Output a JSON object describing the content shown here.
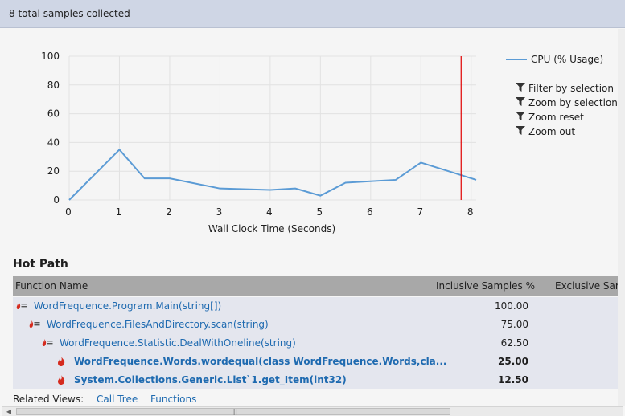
{
  "header": {
    "title": "8 total samples collected"
  },
  "chart_data": {
    "type": "line",
    "x": [
      0,
      1,
      1.5,
      2,
      3,
      4,
      4.5,
      5,
      5.5,
      6.5,
      7,
      8.1
    ],
    "series": [
      {
        "name": "CPU (% Usage)",
        "values": [
          0,
          35,
          15,
          15,
          8,
          7,
          8,
          3,
          12,
          14,
          26,
          14
        ],
        "color": "#5b9bd5"
      }
    ],
    "xlabel": "Wall Clock Time (Seconds)",
    "ylabel": "",
    "xlim": [
      0,
      8.1
    ],
    "ylim": [
      0,
      100
    ],
    "xticks": [
      "0",
      "1",
      "2",
      "3",
      "4",
      "5",
      "6",
      "7",
      "8"
    ],
    "yticks": [
      "0",
      "20",
      "40",
      "60",
      "80",
      "100"
    ],
    "marker_x": 7.8,
    "marker_color": "#e00000",
    "grid": true,
    "legend": "right"
  },
  "chart_commands": [
    {
      "label": "Filter by selection",
      "icon": "filter-icon"
    },
    {
      "label": "Zoom by selection",
      "icon": "filter-icon"
    },
    {
      "label": "Zoom reset",
      "icon": "filter-icon"
    },
    {
      "label": "Zoom out",
      "icon": "filter-icon"
    }
  ],
  "hot_path": {
    "title": "Hot Path",
    "columns": [
      "Function Name",
      "Inclusive Samples %",
      "Exclusive Samp"
    ],
    "rows": [
      {
        "name": "WordFrequence.Program.Main(string[])",
        "inclusive": "100.00",
        "bold": false,
        "icon": "hot-path-icon"
      },
      {
        "name": "WordFrequence.FilesAndDirectory.scan(string)",
        "inclusive": "75.00",
        "bold": false,
        "icon": "hot-path-icon"
      },
      {
        "name": "WordFrequence.Statistic.DealWithOneline(string)",
        "inclusive": "62.50",
        "bold": false,
        "icon": "hot-path-icon"
      },
      {
        "name": "WordFrequence.Words.wordequal(class WordFrequence.Words,cla...",
        "inclusive": "25.00",
        "bold": true,
        "icon": "flame-icon"
      },
      {
        "name": "System.Collections.Generic.List`1.get_Item(int32)",
        "inclusive": "12.50",
        "bold": true,
        "icon": "flame-icon"
      }
    ]
  },
  "related": {
    "label": "Related Views:",
    "links": [
      "Call Tree",
      "Functions"
    ]
  },
  "scrollbar": {
    "grip": "|||"
  }
}
